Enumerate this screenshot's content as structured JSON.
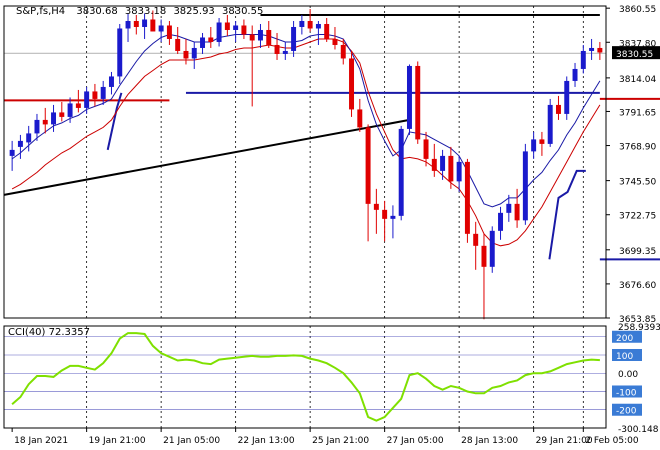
{
  "chart_data": {
    "type": "candlestick",
    "header": {
      "symbol": "S&P,fs,H4",
      "open": "3830.68",
      "high": "3833.18",
      "low": "3825.93",
      "close": "3830.55"
    },
    "price_axis": {
      "ticks": [
        "3860.55",
        "3837.80",
        "3814.04",
        "3791.65",
        "3768.90",
        "3745.50",
        "3722.75",
        "3699.35",
        "3676.60",
        "3653.85"
      ],
      "current_price": "3830.55",
      "ylim": [
        3653.85,
        3862.0
      ]
    },
    "time_axis": {
      "ticks": [
        "18 Jan 2021",
        "19 Jan 21:00",
        "21 Jan 05:00",
        "22 Jan 13:00",
        "25 Jan 21:00",
        "27 Jan 05:00",
        "28 Jan 13:00",
        "29 Jan 21:00",
        "2 Feb 05:00"
      ]
    },
    "candles": [
      {
        "o": 3762,
        "h": 3772,
        "l": 3752,
        "c": 3766
      },
      {
        "o": 3768,
        "h": 3776,
        "l": 3760,
        "c": 3772
      },
      {
        "o": 3771,
        "h": 3782,
        "l": 3765,
        "c": 3777
      },
      {
        "o": 3777,
        "h": 3790,
        "l": 3772,
        "c": 3786
      },
      {
        "o": 3786,
        "h": 3794,
        "l": 3777,
        "c": 3783
      },
      {
        "o": 3783,
        "h": 3796,
        "l": 3778,
        "c": 3791
      },
      {
        "o": 3791,
        "h": 3798,
        "l": 3785,
        "c": 3788
      },
      {
        "o": 3788,
        "h": 3801,
        "l": 3784,
        "c": 3797
      },
      {
        "o": 3797,
        "h": 3806,
        "l": 3791,
        "c": 3794
      },
      {
        "o": 3794,
        "h": 3808,
        "l": 3790,
        "c": 3805
      },
      {
        "o": 3805,
        "h": 3810,
        "l": 3795,
        "c": 3800
      },
      {
        "o": 3800,
        "h": 3812,
        "l": 3796,
        "c": 3808
      },
      {
        "o": 3808,
        "h": 3818,
        "l": 3803,
        "c": 3815
      },
      {
        "o": 3815,
        "h": 3850,
        "l": 3810,
        "c": 3847
      },
      {
        "o": 3847,
        "h": 3857,
        "l": 3838,
        "c": 3852
      },
      {
        "o": 3852,
        "h": 3856,
        "l": 3843,
        "c": 3848
      },
      {
        "o": 3848,
        "h": 3857,
        "l": 3840,
        "c": 3853
      },
      {
        "o": 3853,
        "h": 3859,
        "l": 3845,
        "c": 3845
      },
      {
        "o": 3845,
        "h": 3853,
        "l": 3838,
        "c": 3849
      },
      {
        "o": 3849,
        "h": 3852,
        "l": 3836,
        "c": 3840
      },
      {
        "o": 3840,
        "h": 3848,
        "l": 3830,
        "c": 3832
      },
      {
        "o": 3832,
        "h": 3840,
        "l": 3823,
        "c": 3827
      },
      {
        "o": 3827,
        "h": 3838,
        "l": 3820,
        "c": 3834
      },
      {
        "o": 3834,
        "h": 3844,
        "l": 3830,
        "c": 3841
      },
      {
        "o": 3841,
        "h": 3848,
        "l": 3834,
        "c": 3838
      },
      {
        "o": 3838,
        "h": 3854,
        "l": 3835,
        "c": 3851
      },
      {
        "o": 3851,
        "h": 3856,
        "l": 3842,
        "c": 3846
      },
      {
        "o": 3846,
        "h": 3852,
        "l": 3838,
        "c": 3849
      },
      {
        "o": 3849,
        "h": 3853,
        "l": 3840,
        "c": 3843
      },
      {
        "o": 3843,
        "h": 3849,
        "l": 3795,
        "c": 3839
      },
      {
        "o": 3839,
        "h": 3850,
        "l": 3834,
        "c": 3846
      },
      {
        "o": 3846,
        "h": 3852,
        "l": 3834,
        "c": 3836
      },
      {
        "o": 3836,
        "h": 3844,
        "l": 3826,
        "c": 3830
      },
      {
        "o": 3830,
        "h": 3838,
        "l": 3826,
        "c": 3832
      },
      {
        "o": 3832,
        "h": 3852,
        "l": 3828,
        "c": 3848
      },
      {
        "o": 3848,
        "h": 3856,
        "l": 3843,
        "c": 3852
      },
      {
        "o": 3852,
        "h": 3860,
        "l": 3845,
        "c": 3847
      },
      {
        "o": 3847,
        "h": 3852,
        "l": 3836,
        "c": 3850
      },
      {
        "o": 3850,
        "h": 3854,
        "l": 3838,
        "c": 3840
      },
      {
        "o": 3840,
        "h": 3848,
        "l": 3833,
        "c": 3836
      },
      {
        "o": 3836,
        "h": 3840,
        "l": 3823,
        "c": 3827
      },
      {
        "o": 3827,
        "h": 3832,
        "l": 3788,
        "c": 3793
      },
      {
        "o": 3793,
        "h": 3800,
        "l": 3778,
        "c": 3781
      },
      {
        "o": 3781,
        "h": 3783,
        "l": 3705,
        "c": 3730
      },
      {
        "o": 3730,
        "h": 3740,
        "l": 3710,
        "c": 3726
      },
      {
        "o": 3726,
        "h": 3732,
        "l": 3705,
        "c": 3720
      },
      {
        "o": 3720,
        "h": 3729,
        "l": 3707,
        "c": 3722
      },
      {
        "o": 3722,
        "h": 3782,
        "l": 3719,
        "c": 3780
      },
      {
        "o": 3780,
        "h": 3823,
        "l": 3776,
        "c": 3822
      },
      {
        "o": 3822,
        "h": 3825,
        "l": 3770,
        "c": 3773
      },
      {
        "o": 3773,
        "h": 3778,
        "l": 3755,
        "c": 3760
      },
      {
        "o": 3760,
        "h": 3770,
        "l": 3748,
        "c": 3752
      },
      {
        "o": 3752,
        "h": 3766,
        "l": 3746,
        "c": 3762
      },
      {
        "o": 3762,
        "h": 3768,
        "l": 3740,
        "c": 3745
      },
      {
        "o": 3745,
        "h": 3762,
        "l": 3738,
        "c": 3758
      },
      {
        "o": 3758,
        "h": 3760,
        "l": 3704,
        "c": 3710
      },
      {
        "o": 3710,
        "h": 3718,
        "l": 3686,
        "c": 3702
      },
      {
        "o": 3702,
        "h": 3710,
        "l": 3653,
        "c": 3688
      },
      {
        "o": 3688,
        "h": 3715,
        "l": 3684,
        "c": 3712
      },
      {
        "o": 3712,
        "h": 3728,
        "l": 3706,
        "c": 3724
      },
      {
        "o": 3724,
        "h": 3736,
        "l": 3718,
        "c": 3730
      },
      {
        "o": 3730,
        "h": 3740,
        "l": 3714,
        "c": 3719
      },
      {
        "o": 3719,
        "h": 3770,
        "l": 3716,
        "c": 3765
      },
      {
        "o": 3765,
        "h": 3778,
        "l": 3760,
        "c": 3773
      },
      {
        "o": 3773,
        "h": 3778,
        "l": 3762,
        "c": 3770
      },
      {
        "o": 3770,
        "h": 3800,
        "l": 3768,
        "c": 3796
      },
      {
        "o": 3796,
        "h": 3802,
        "l": 3786,
        "c": 3790
      },
      {
        "o": 3790,
        "h": 3815,
        "l": 3786,
        "c": 3812
      },
      {
        "o": 3812,
        "h": 3824,
        "l": 3808,
        "c": 3820
      },
      {
        "o": 3820,
        "h": 3836,
        "l": 3817,
        "c": 3832
      },
      {
        "o": 3832,
        "h": 3840,
        "l": 3826,
        "c": 3834
      },
      {
        "o": 3834,
        "h": 3838,
        "l": 3826,
        "c": 3831
      }
    ],
    "overlays": {
      "ema_fast": {
        "color": "#1a1aa6",
        "values": [
          3760,
          3764,
          3769,
          3774,
          3778,
          3782,
          3784,
          3787,
          3789,
          3793,
          3795,
          3797,
          3800,
          3809,
          3817,
          3825,
          3832,
          3837,
          3841,
          3843,
          3842,
          3840,
          3838,
          3838,
          3838,
          3841,
          3842,
          3843,
          3843,
          3843,
          3843,
          3842,
          3840,
          3838,
          3838,
          3839,
          3842,
          3843,
          3843,
          3842,
          3840,
          3831,
          3820,
          3799,
          3783,
          3772,
          3762,
          3766,
          3778,
          3777,
          3776,
          3773,
          3770,
          3767,
          3762,
          3752,
          3741,
          3730,
          3728,
          3730,
          3734,
          3734,
          3740,
          3746,
          3751,
          3759,
          3766,
          3776,
          3784,
          3794,
          3803,
          3812
        ]
      },
      "ema_slow": {
        "color": "#cc0000",
        "values": [
          3740,
          3743,
          3747,
          3751,
          3756,
          3760,
          3764,
          3767,
          3771,
          3775,
          3778,
          3781,
          3786,
          3795,
          3803,
          3809,
          3815,
          3819,
          3823,
          3826,
          3826,
          3826,
          3826,
          3827,
          3828,
          3830,
          3831,
          3833,
          3834,
          3834,
          3835,
          3836,
          3835,
          3834,
          3834,
          3836,
          3838,
          3840,
          3840,
          3840,
          3838,
          3832,
          3824,
          3805,
          3790,
          3778,
          3766,
          3760,
          3761,
          3760,
          3758,
          3754,
          3749,
          3744,
          3740,
          3732,
          3722,
          3710,
          3704,
          3702,
          3703,
          3706,
          3712,
          3720,
          3728,
          3738,
          3748,
          3758,
          3768,
          3778,
          3787,
          3796
        ]
      },
      "horizontal_levels": [
        {
          "price": 3856,
          "from": 30,
          "to": 82,
          "color": "#000000"
        },
        {
          "price": 3799,
          "from": 0,
          "to": 19,
          "color": "#cc0000"
        },
        {
          "price": 3804,
          "from": 21,
          "to": 78,
          "color": "#1a1aa6"
        },
        {
          "price": 3800,
          "from": 82,
          "to": 89,
          "color": "#cc0000"
        },
        {
          "price": 3693,
          "from": 90,
          "to": 118,
          "color": "#1a1aa6"
        }
      ],
      "trendline": {
        "from_price": 3736,
        "to_price": 3786,
        "color": "#000000"
      },
      "stop_line_blue": {
        "color": "#1a1aa6",
        "points": [
          [
            21,
            3766
          ],
          [
            22,
            3780
          ],
          [
            23,
            3794
          ],
          [
            24,
            3804
          ]
        ]
      },
      "stop_line_blue2": {
        "color": "#1a1aa6",
        "points": [
          [
            118,
            3693
          ],
          [
            120,
            3734
          ],
          [
            122,
            3738
          ],
          [
            124,
            3752
          ],
          [
            126,
            3752
          ]
        ]
      }
    },
    "cci": {
      "label": "CCI(40) 72.3357",
      "ylim": [
        -300.148,
        258.9393
      ],
      "levels": [
        "258.9393",
        "200",
        "100",
        "0.00",
        "-100",
        "-200",
        "-300.148"
      ],
      "color": "#7fe000",
      "values": [
        -170,
        -130,
        -60,
        -15,
        -15,
        -20,
        15,
        40,
        40,
        30,
        20,
        55,
        110,
        190,
        220,
        220,
        215,
        150,
        110,
        90,
        70,
        75,
        70,
        55,
        50,
        75,
        80,
        85,
        90,
        95,
        90,
        90,
        95,
        95,
        98,
        95,
        80,
        70,
        55,
        30,
        0,
        -50,
        -110,
        -240,
        -260,
        -240,
        -190,
        -140,
        -10,
        0,
        -30,
        -70,
        -90,
        -70,
        -80,
        -100,
        -110,
        -110,
        -80,
        -70,
        -50,
        -40,
        -10,
        0,
        0,
        10,
        30,
        50,
        60,
        70,
        75,
        72
      ]
    }
  }
}
